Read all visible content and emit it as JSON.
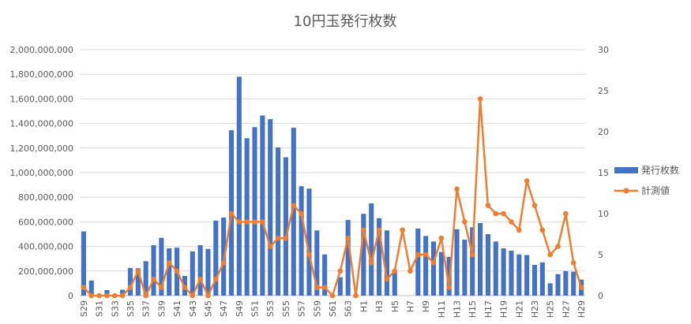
{
  "chart_data": {
    "type": "bar+line",
    "title": "10円玉発行枚数",
    "categories": [
      "S29",
      "S30",
      "S31",
      "S32",
      "S33",
      "S34",
      "S35",
      "S36",
      "S37",
      "S38",
      "S39",
      "S40",
      "S41",
      "S42",
      "S43",
      "S44",
      "S45",
      "S46",
      "S47",
      "S48",
      "S49",
      "S50",
      "S51",
      "S52",
      "S53",
      "S54",
      "S55",
      "S56",
      "S57",
      "S58",
      "S59",
      "S60",
      "S61",
      "S62",
      "S63",
      "S64",
      "H1",
      "H2",
      "H3",
      "H4",
      "H5",
      "H6",
      "H7",
      "H8",
      "H9",
      "H10",
      "H11",
      "H12",
      "H13",
      "H14",
      "H15",
      "H16",
      "H17",
      "H18",
      "H19",
      "H20",
      "H21",
      "H22",
      "H23",
      "H24",
      "H25",
      "H26",
      "H27",
      "H28",
      "H29"
    ],
    "x_tick_labels": [
      "S29",
      "S31",
      "S33",
      "S35",
      "S37",
      "S39",
      "S41",
      "S43",
      "S45",
      "S47",
      "S49",
      "S51",
      "S53",
      "S55",
      "S57",
      "S59",
      "S61",
      "S63",
      "H1",
      "H3",
      "H5",
      "H7",
      "H9",
      "H11",
      "H13",
      "H15",
      "H17",
      "H19",
      "H21",
      "H23",
      "H25",
      "H27",
      "H29"
    ],
    "series": [
      {
        "name": "発行枚数",
        "kind": "bar",
        "axis": "left",
        "color": "#4472C4",
        "values": [
          522000000,
          123000000,
          0,
          45000000,
          0,
          48000000,
          225000000,
          223000000,
          280000000,
          410000000,
          470000000,
          385000000,
          390000000,
          160000000,
          360000000,
          410000000,
          380000000,
          610000000,
          635000000,
          1345000000,
          1780000000,
          1280000000,
          1370000000,
          1465000000,
          1435000000,
          1205000000,
          1125000000,
          1365000000,
          890000000,
          870000000,
          530000000,
          335000000,
          0,
          150000000,
          615000000,
          0,
          665000000,
          750000000,
          630000000,
          530000000,
          200000000,
          0,
          0,
          545000000,
          485000000,
          440000000,
          355000000,
          315000000,
          540000000,
          455000000,
          555000000,
          590000000,
          500000000,
          440000000,
          385000000,
          365000000,
          335000000,
          330000000,
          250000000,
          270000000,
          100000000,
          175000000,
          200000000,
          195000000,
          130000000
        ]
      },
      {
        "name": "計測値",
        "kind": "line",
        "axis": "right",
        "color": "#ED7D31",
        "values": [
          1,
          0,
          0,
          0,
          0,
          0,
          1,
          3,
          0,
          2,
          1,
          4,
          3,
          1,
          0,
          2,
          0,
          2,
          4,
          10,
          9,
          9,
          9,
          9,
          6,
          7,
          7,
          11,
          10,
          5,
          1,
          1,
          0,
          3,
          7,
          0,
          8,
          4,
          8,
          2,
          3,
          8,
          3,
          5,
          5,
          4,
          7,
          1,
          13,
          9,
          5,
          24,
          11,
          10,
          10,
          9,
          8,
          14,
          11,
          8,
          5,
          6,
          10,
          4,
          1
        ]
      }
    ],
    "y_left": {
      "min": 0,
      "max": 2000000000,
      "ticks": [
        "0",
        "200,000,000",
        "400,000,000",
        "600,000,000",
        "800,000,000",
        "1,000,000,000",
        "1,200,000,000",
        "1,400,000,000",
        "1,600,000,000",
        "1,800,000,000",
        "2,000,000,000"
      ]
    },
    "y_right": {
      "min": 0,
      "max": 30,
      "ticks": [
        "0",
        "5",
        "10",
        "15",
        "20",
        "25",
        "30"
      ]
    },
    "grid": true,
    "legend_position": "right"
  }
}
